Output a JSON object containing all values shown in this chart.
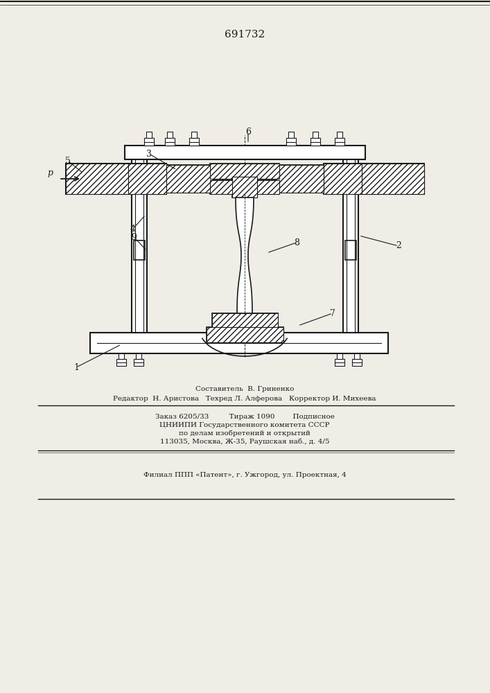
{
  "patent_number": "691732",
  "background_color": "#f0ede6",
  "line_color": "#1a1a1a",
  "label_fontsize": 9,
  "footer_text_1": "Составитель  В. Гриненко",
  "footer_text_2": "Редактор  Н. Аристова   Техред Л. Алферова   Корректор И. Михеева",
  "footer_text_3": "Заказ 6205/33         Тираж 1090        Подписное",
  "footer_text_4": "ЦНИИПИ Государственного комитета СССР",
  "footer_text_5": "по делам изобретений и открытий",
  "footer_text_6": "113035, Москва, Ж-35, Раушская наб., д. 4/5",
  "footer_text_7": "Филиал ППП «Патент», г. Ужгород, ул. Проектная, 4"
}
